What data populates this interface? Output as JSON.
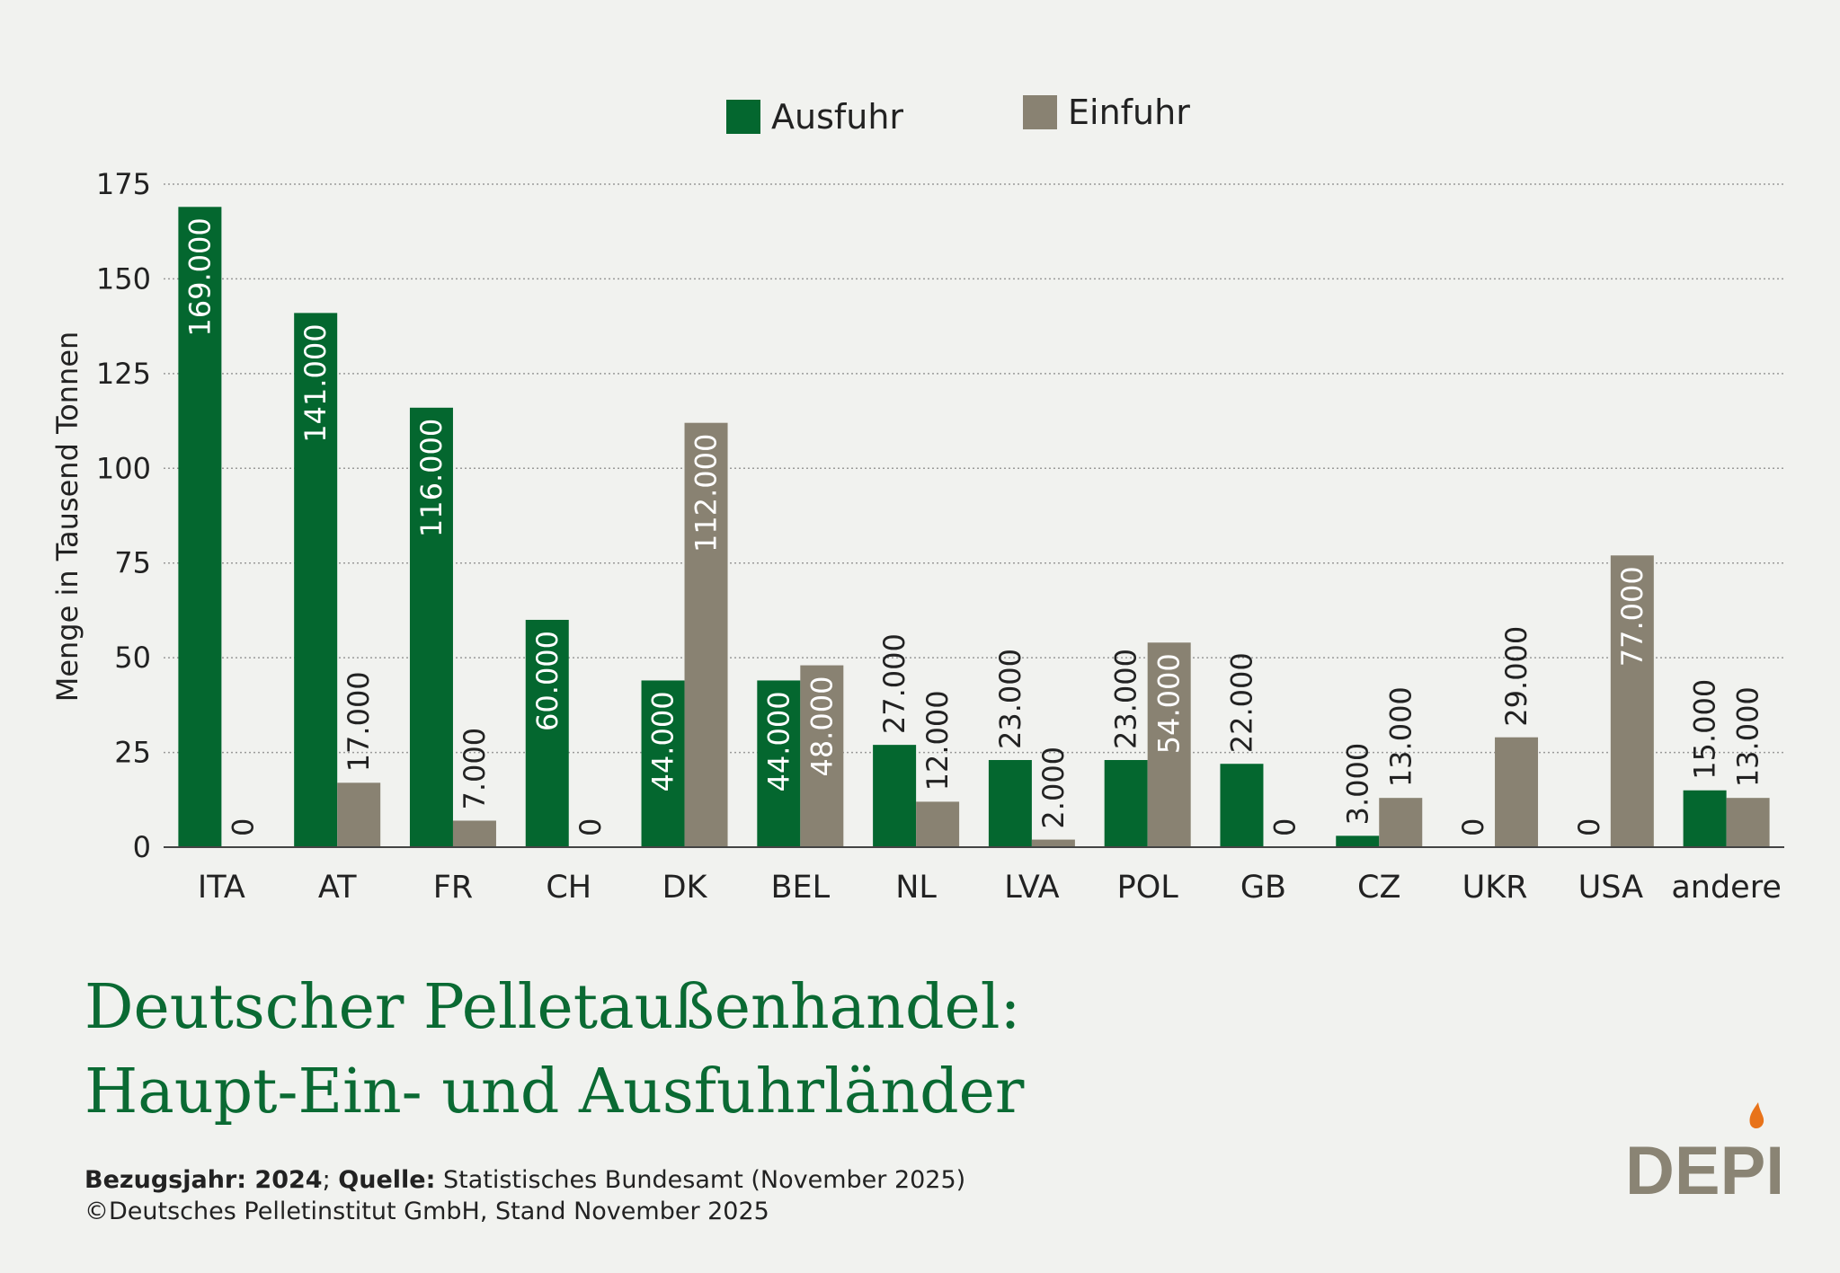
{
  "chart_data": {
    "type": "bar",
    "ylabel": "Menge in Tausend Tonnen",
    "ylim": [
      0,
      175
    ],
    "yticks": [
      "0",
      "25",
      "50",
      "75",
      "100",
      "125",
      "150",
      "175"
    ],
    "categories": [
      "ITA",
      "AT",
      "FR",
      "CH",
      "DK",
      "BEL",
      "NL",
      "LVA",
      "POL",
      "GB",
      "CZ",
      "UKR",
      "USA",
      "andere"
    ],
    "series": [
      {
        "name": "Ausfuhr",
        "color": "#04672f",
        "values": [
          169,
          141,
          116,
          60,
          44,
          44,
          27,
          23,
          23,
          22,
          3,
          0,
          0,
          15
        ],
        "labels": [
          "169.000",
          "141.000",
          "116.000",
          "60.000",
          "44.000",
          "44.000",
          "27.000",
          "23.000",
          "23.000",
          "22.000",
          "3.000",
          "0",
          "0",
          "15.000"
        ]
      },
      {
        "name": "Einfuhr",
        "color": "#898272",
        "values": [
          0,
          17,
          7,
          0,
          112,
          48,
          12,
          2,
          54,
          0,
          13,
          29,
          77,
          13
        ],
        "labels": [
          "0",
          "17.000",
          "7.000",
          "0",
          "112.000",
          "48.000",
          "12.000",
          "2.000",
          "54.000",
          "0",
          "13.000",
          "29.000",
          "77.000",
          "13.000"
        ]
      }
    ],
    "grid": true,
    "legend_position": "top-center"
  },
  "title": {
    "line1": "Deutscher Pelletaußenhandel:",
    "line2": "Haupt-Ein- und Ausfuhrländer"
  },
  "footer": {
    "year_label": "Bezugsjahr: 2024",
    "separator": ";",
    "source_label": "Quelle:",
    "source_text": "Statistisches Bundesamt (November 2025)",
    "copyright": "©Deutsches Pelletinstitut GmbH, Stand November 2025"
  },
  "logo": {
    "text": "DEPI",
    "text_color": "#8a8474",
    "flame_color": "#e8731a"
  }
}
